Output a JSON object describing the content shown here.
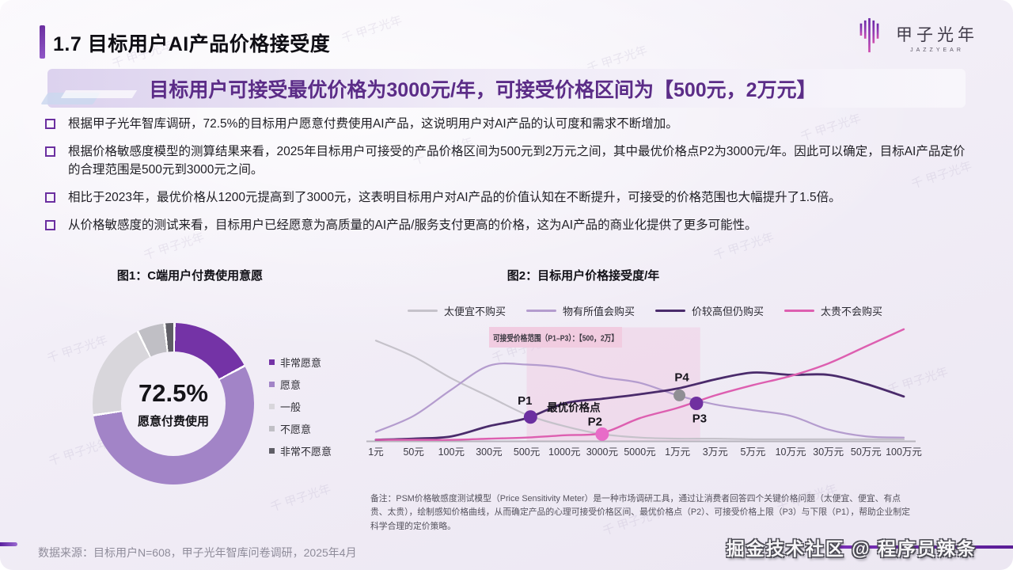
{
  "slide": {
    "section_title": "1.7 目标用户AI产品价格接受度",
    "headline": "目标用户可接受最优价格为3000元/年，可接受价格区间为【500元，2万元】",
    "bullets": [
      "根据甲子光年智库调研，72.5%的目标用户愿意付费使用AI产品，这说明用户对AI产品的认可度和需求不断增加。",
      "根据价格敏感度模型的测算结果来看，2025年目标用户可接受的产品价格区间为500元到2万元之间，其中最优价格点P2为3000元/年。因此可以确定，目标AI产品定价的合理范围是500元到3000元之间。",
      "相比于2023年，最优价格从1200元提高到了3000元，这表明目标用户对AI产品的价值认知在不断提升，可接受的价格范围也大幅提升了1.5倍。",
      "从价格敏感度的测试来看，目标用户已经愿意为高质量的AI产品/服务支付更高的价格，这为AI产品的商业化提供了更多可能性。"
    ],
    "logo": {
      "name": "甲子光年",
      "subtext": "JAZZYEAR"
    },
    "footer": {
      "source": "数据来源：目标用户N=608，甲子光年智库问卷调研，2025年4月"
    },
    "watermark_text": "掘金技术社区 @ 程序员辣条",
    "background_watermark": "甲子光年"
  },
  "colors": {
    "accent_purple": "#6B2FA0",
    "headline_purple": "#5B2C87",
    "band_pink": "#EFCBE3",
    "slide_bg": "#F1EDF6"
  },
  "chart_data": [
    {
      "type": "pie",
      "donut": true,
      "title": "图1：C端用户付费使用意愿",
      "categories": [
        "非常愿意",
        "愿意",
        "一般",
        "不愿意",
        "非常不愿意"
      ],
      "values": [
        17,
        55.5,
        20,
        5.5,
        2
      ],
      "colors": [
        "#7433A6",
        "#A284C7",
        "#D8D6DB",
        "#C0BFC5",
        "#5F5E66"
      ],
      "center_value": "72.5%",
      "center_label": "愿意付费使用",
      "legend_position": "right"
    },
    {
      "type": "line",
      "title": "图2：目标用户价格接受度/年",
      "x_categories": [
        "1元",
        "50元",
        "100元",
        "300元",
        "500元",
        "1000元",
        "3000元",
        "5000元",
        "1万元",
        "3万元",
        "5万元",
        "10万元",
        "30万元",
        "50万元",
        "100万元"
      ],
      "ylim": [
        0,
        100
      ],
      "y_axis_visible": false,
      "grid": false,
      "legend_position": "top",
      "series": [
        {
          "name": "太便宜不购买",
          "color": "#C5C2CA",
          "values": [
            88,
            74,
            55,
            39,
            23,
            13,
            6,
            3,
            2,
            2,
            1.5,
            1.5,
            1.5,
            1.5,
            1.5
          ]
        },
        {
          "name": "物有所值会购买",
          "color": "#B49CCE",
          "values": [
            8,
            22,
            45,
            66,
            67,
            64,
            56,
            51,
            40,
            32,
            27,
            22,
            10,
            4,
            3
          ]
        },
        {
          "name": "价较高但仍购买",
          "color": "#4A2B6B",
          "values": [
            1,
            2,
            4,
            13,
            20,
            33,
            37,
            41,
            46,
            54,
            60,
            58,
            58,
            50,
            39
          ]
        },
        {
          "name": "太贵不会购买",
          "color": "#DD5FB0",
          "values": [
            1,
            1,
            1,
            2,
            3,
            5,
            7,
            20,
            29,
            40,
            49,
            57,
            68,
            83,
            98
          ]
        }
      ],
      "points": [
        {
          "label": "P1",
          "x": "500元",
          "x_index": 4.1,
          "value": 21,
          "color": "#6B2FA0"
        },
        {
          "label": "P2",
          "x": "3000元",
          "x_index": 6,
          "value": 6,
          "color": "#E86CC8",
          "sub_label": "最优价格点"
        },
        {
          "label": "P4",
          "x": "1.5万元",
          "x_index": 8.05,
          "value": 40,
          "color": "#8F8E94"
        },
        {
          "label": "P3",
          "x": "2万元",
          "x_index": 8.5,
          "value": 33,
          "color": "#7030A0"
        }
      ],
      "band": {
        "from_x": "500元",
        "to_x": "2万",
        "from_index": 4,
        "to_index": 8.6,
        "label": "可接受价格范围（P1–P3）：【500，2万】"
      },
      "note": "备注：PSM价格敏感度测试模型（Price Sensitivity Meter）是一种市场调研工具，通过让消费者回答四个关键价格问题（太便宜、便宜、有点贵、太贵），绘制感知价格曲线，从而确定产品的心理可接受价格区间、最优价格点（P2）、可接受价格上限（P3）与下限（P1），帮助企业制定科学合理的定价策略。"
    }
  ]
}
